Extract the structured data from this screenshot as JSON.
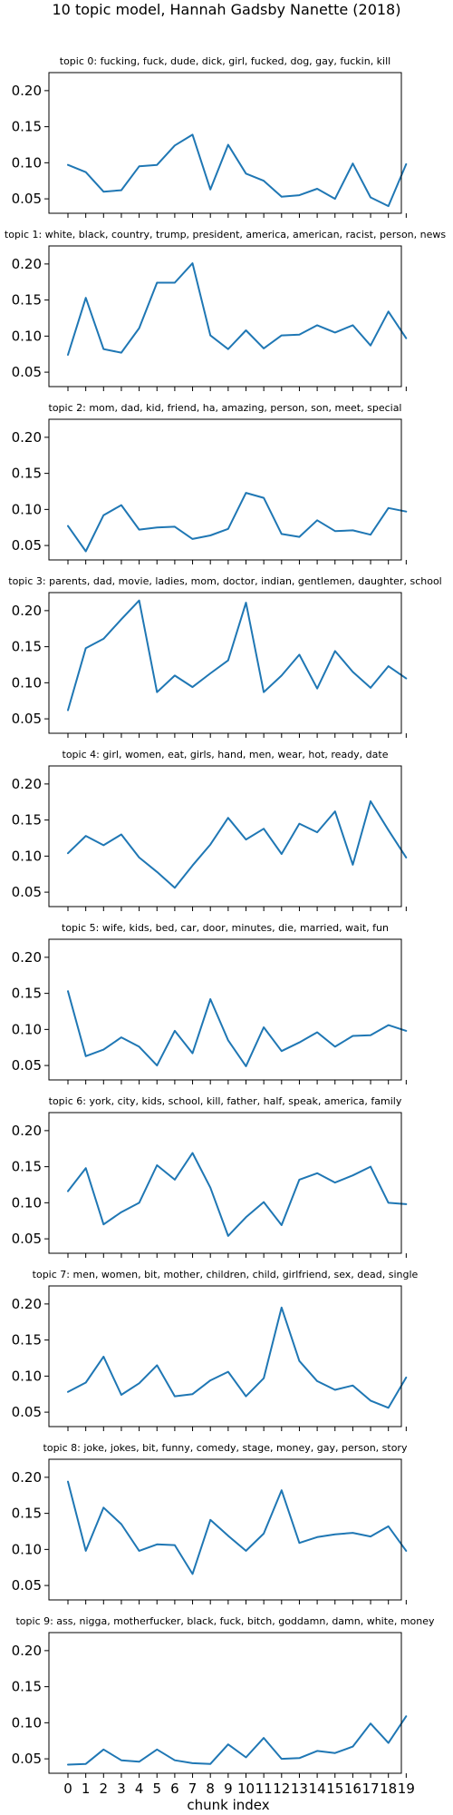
{
  "figure": {
    "title": "10 topic model, Hannah Gadsby Nanette (2018)",
    "xlabel": "chunk index"
  },
  "chart_data": [
    {
      "type": "line",
      "title": "topic 0: fucking, fuck, dude, dick, girl, fucked, dog, gay, fuckin, kill",
      "x": [
        0,
        1,
        2,
        3,
        4,
        5,
        6,
        7,
        8,
        9,
        10,
        11,
        12,
        13,
        14,
        15,
        16,
        17,
        18,
        19
      ],
      "values": [
        0.097,
        0.087,
        0.06,
        0.062,
        0.095,
        0.097,
        0.124,
        0.139,
        0.063,
        0.125,
        0.085,
        0.075,
        0.053,
        0.055,
        0.064,
        0.05,
        0.099,
        0.052,
        0.04,
        0.098
      ],
      "ylim": [
        0.03,
        0.225
      ],
      "yticks": [
        "0.05",
        "0.10",
        "0.15",
        "0.20"
      ]
    },
    {
      "type": "line",
      "title": "topic 1: white, black, country, trump, president, america, american, racist, person, news",
      "x": [
        0,
        1,
        2,
        3,
        4,
        5,
        6,
        7,
        8,
        9,
        10,
        11,
        12,
        13,
        14,
        15,
        16,
        17,
        18,
        19
      ],
      "values": [
        0.074,
        0.153,
        0.082,
        0.077,
        0.111,
        0.174,
        0.174,
        0.201,
        0.101,
        0.082,
        0.108,
        0.083,
        0.101,
        0.102,
        0.115,
        0.105,
        0.115,
        0.087,
        0.134,
        0.097
      ],
      "ylim": [
        0.03,
        0.225
      ],
      "yticks": [
        "0.05",
        "0.10",
        "0.15",
        "0.20"
      ]
    },
    {
      "type": "line",
      "title": "topic 2: mom, dad, kid, friend, ha, amazing, person, son, meet, special",
      "x": [
        0,
        1,
        2,
        3,
        4,
        5,
        6,
        7,
        8,
        9,
        10,
        11,
        12,
        13,
        14,
        15,
        16,
        17,
        18,
        19
      ],
      "values": [
        0.077,
        0.042,
        0.092,
        0.106,
        0.072,
        0.075,
        0.076,
        0.059,
        0.064,
        0.073,
        0.123,
        0.116,
        0.066,
        0.062,
        0.085,
        0.07,
        0.071,
        0.065,
        0.102,
        0.097
      ],
      "ylim": [
        0.03,
        0.225
      ],
      "yticks": [
        "0.05",
        "0.10",
        "0.15",
        "0.20"
      ]
    },
    {
      "type": "line",
      "title": "topic 3: parents, dad, movie, ladies, mom, doctor, indian, gentlemen, daughter, school",
      "x": [
        0,
        1,
        2,
        3,
        4,
        5,
        6,
        7,
        8,
        9,
        10,
        11,
        12,
        13,
        14,
        15,
        16,
        17,
        18,
        19
      ],
      "values": [
        0.062,
        0.148,
        0.161,
        0.188,
        0.214,
        0.087,
        0.11,
        0.094,
        0.113,
        0.131,
        0.211,
        0.087,
        0.11,
        0.139,
        0.092,
        0.144,
        0.115,
        0.093,
        0.123,
        0.106
      ],
      "ylim": [
        0.03,
        0.225
      ],
      "yticks": [
        "0.05",
        "0.10",
        "0.15",
        "0.20"
      ]
    },
    {
      "type": "line",
      "title": "topic 4: girl, women, eat, girls, hand, men, wear, hot, ready, date",
      "x": [
        0,
        1,
        2,
        3,
        4,
        5,
        6,
        7,
        8,
        9,
        10,
        11,
        12,
        13,
        14,
        15,
        16,
        17,
        18,
        19
      ],
      "values": [
        0.104,
        0.128,
        0.115,
        0.13,
        0.098,
        0.078,
        0.056,
        0.087,
        0.116,
        0.153,
        0.123,
        0.138,
        0.103,
        0.145,
        0.133,
        0.162,
        0.088,
        0.176,
        0.136,
        0.098
      ],
      "ylim": [
        0.03,
        0.225
      ],
      "yticks": [
        "0.05",
        "0.10",
        "0.15",
        "0.20"
      ]
    },
    {
      "type": "line",
      "title": "topic 5: wife, kids, bed, car, door, minutes, die, married, wait, fun",
      "x": [
        0,
        1,
        2,
        3,
        4,
        5,
        6,
        7,
        8,
        9,
        10,
        11,
        12,
        13,
        14,
        15,
        16,
        17,
        18,
        19
      ],
      "values": [
        0.153,
        0.063,
        0.072,
        0.089,
        0.076,
        0.05,
        0.098,
        0.067,
        0.142,
        0.085,
        0.049,
        0.103,
        0.07,
        0.082,
        0.096,
        0.076,
        0.091,
        0.092,
        0.106,
        0.098
      ],
      "ylim": [
        0.03,
        0.225
      ],
      "yticks": [
        "0.05",
        "0.10",
        "0.15",
        "0.20"
      ]
    },
    {
      "type": "line",
      "title": "topic 6: york, city, kids, school, kill, father, half, speak, america, family",
      "x": [
        0,
        1,
        2,
        3,
        4,
        5,
        6,
        7,
        8,
        9,
        10,
        11,
        12,
        13,
        14,
        15,
        16,
        17,
        18,
        19
      ],
      "values": [
        0.116,
        0.148,
        0.07,
        0.087,
        0.1,
        0.152,
        0.132,
        0.169,
        0.121,
        0.054,
        0.08,
        0.101,
        0.069,
        0.132,
        0.141,
        0.128,
        0.138,
        0.15,
        0.1,
        0.098
      ],
      "ylim": [
        0.03,
        0.225
      ],
      "yticks": [
        "0.05",
        "0.10",
        "0.15",
        "0.20"
      ]
    },
    {
      "type": "line",
      "title": "topic 7: men, women, bit, mother, children, child, girlfriend, sex, dead, single",
      "x": [
        0,
        1,
        2,
        3,
        4,
        5,
        6,
        7,
        8,
        9,
        10,
        11,
        12,
        13,
        14,
        15,
        16,
        17,
        18,
        19
      ],
      "values": [
        0.078,
        0.091,
        0.127,
        0.074,
        0.09,
        0.115,
        0.072,
        0.075,
        0.094,
        0.106,
        0.072,
        0.097,
        0.195,
        0.121,
        0.093,
        0.081,
        0.087,
        0.066,
        0.056,
        0.098
      ],
      "ylim": [
        0.03,
        0.225
      ],
      "yticks": [
        "0.05",
        "0.10",
        "0.15",
        "0.20"
      ]
    },
    {
      "type": "line",
      "title": "topic 8: joke, jokes, bit, funny, comedy, stage, money, gay, person, story",
      "x": [
        0,
        1,
        2,
        3,
        4,
        5,
        6,
        7,
        8,
        9,
        10,
        11,
        12,
        13,
        14,
        15,
        16,
        17,
        18,
        19
      ],
      "values": [
        0.194,
        0.098,
        0.158,
        0.135,
        0.098,
        0.107,
        0.106,
        0.066,
        0.141,
        0.119,
        0.098,
        0.122,
        0.182,
        0.109,
        0.117,
        0.121,
        0.123,
        0.118,
        0.132,
        0.098
      ],
      "ylim": [
        0.03,
        0.225
      ],
      "yticks": [
        "0.05",
        "0.10",
        "0.15",
        "0.20"
      ]
    },
    {
      "type": "line",
      "title": "topic 9: ass, nigga, motherfucker, black, fuck, bitch, goddamn, damn, white, money",
      "x": [
        0,
        1,
        2,
        3,
        4,
        5,
        6,
        7,
        8,
        9,
        10,
        11,
        12,
        13,
        14,
        15,
        16,
        17,
        18,
        19
      ],
      "values": [
        0.042,
        0.043,
        0.063,
        0.048,
        0.046,
        0.063,
        0.048,
        0.044,
        0.043,
        0.07,
        0.052,
        0.079,
        0.05,
        0.051,
        0.061,
        0.058,
        0.067,
        0.099,
        0.072,
        0.109
      ],
      "ylim": [
        0.03,
        0.225
      ],
      "yticks": [
        "0.05",
        "0.10",
        "0.15",
        "0.20"
      ]
    }
  ],
  "xticks": [
    "0",
    "1",
    "2",
    "3",
    "4",
    "5",
    "6",
    "7",
    "8",
    "9",
    "10",
    "11",
    "12",
    "13",
    "14",
    "15",
    "16",
    "17",
    "18",
    "19"
  ]
}
